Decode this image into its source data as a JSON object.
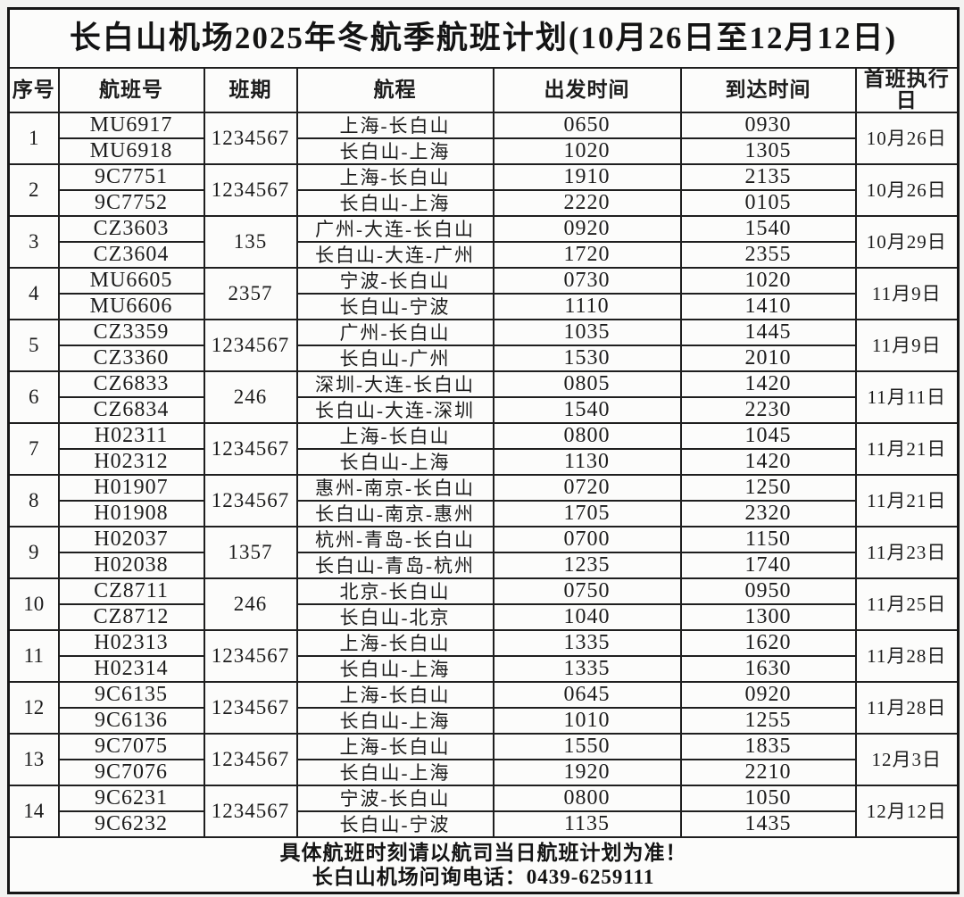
{
  "title": "长白山机场2025年冬航季航班计划(10月26日至12月12日)",
  "table": {
    "headers": [
      "序号",
      "航班号",
      "班期",
      "航程",
      "出发时间",
      "到达时间",
      "首班执行日"
    ],
    "rows": [
      {
        "no": "1",
        "days": "1234567",
        "first_date": "10月26日",
        "flights": [
          {
            "flight_no": "MU6917",
            "route": "上海-长白山",
            "dep": "0650",
            "arr": "0930"
          },
          {
            "flight_no": "MU6918",
            "route": "长白山-上海",
            "dep": "1020",
            "arr": "1305"
          }
        ]
      },
      {
        "no": "2",
        "days": "1234567",
        "first_date": "10月26日",
        "flights": [
          {
            "flight_no": "9C7751",
            "route": "上海-长白山",
            "dep": "1910",
            "arr": "2135"
          },
          {
            "flight_no": "9C7752",
            "route": "长白山-上海",
            "dep": "2220",
            "arr": "0105"
          }
        ]
      },
      {
        "no": "3",
        "days": "135",
        "first_date": "10月29日",
        "flights": [
          {
            "flight_no": "CZ3603",
            "route": "广州-大连-长白山",
            "dep": "0920",
            "arr": "1540"
          },
          {
            "flight_no": "CZ3604",
            "route": "长白山-大连-广州",
            "dep": "1720",
            "arr": "2355"
          }
        ]
      },
      {
        "no": "4",
        "days": "2357",
        "first_date": "11月9日",
        "flights": [
          {
            "flight_no": "MU6605",
            "route": "宁波-长白山",
            "dep": "0730",
            "arr": "1020"
          },
          {
            "flight_no": "MU6606",
            "route": "长白山-宁波",
            "dep": "1110",
            "arr": "1410"
          }
        ]
      },
      {
        "no": "5",
        "days": "1234567",
        "first_date": "11月9日",
        "flights": [
          {
            "flight_no": "CZ3359",
            "route": "广州-长白山",
            "dep": "1035",
            "arr": "1445"
          },
          {
            "flight_no": "CZ3360",
            "route": "长白山-广州",
            "dep": "1530",
            "arr": "2010"
          }
        ]
      },
      {
        "no": "6",
        "days": "246",
        "first_date": "11月11日",
        "flights": [
          {
            "flight_no": "CZ6833",
            "route": "深圳-大连-长白山",
            "dep": "0805",
            "arr": "1420"
          },
          {
            "flight_no": "CZ6834",
            "route": "长白山-大连-深圳",
            "dep": "1540",
            "arr": "2230"
          }
        ]
      },
      {
        "no": "7",
        "days": "1234567",
        "first_date": "11月21日",
        "flights": [
          {
            "flight_no": "H02311",
            "route": "上海-长白山",
            "dep": "0800",
            "arr": "1045"
          },
          {
            "flight_no": "H02312",
            "route": "长白山-上海",
            "dep": "1130",
            "arr": "1420"
          }
        ]
      },
      {
        "no": "8",
        "days": "1234567",
        "first_date": "11月21日",
        "flights": [
          {
            "flight_no": "H01907",
            "route": "惠州-南京-长白山",
            "dep": "0720",
            "arr": "1250"
          },
          {
            "flight_no": "H01908",
            "route": "长白山-南京-惠州",
            "dep": "1705",
            "arr": "2320"
          }
        ]
      },
      {
        "no": "9",
        "days": "1357",
        "first_date": "11月23日",
        "flights": [
          {
            "flight_no": "H02037",
            "route": "杭州-青岛-长白山",
            "dep": "0700",
            "arr": "1150"
          },
          {
            "flight_no": "H02038",
            "route": "长白山-青岛-杭州",
            "dep": "1235",
            "arr": "1740"
          }
        ]
      },
      {
        "no": "10",
        "days": "246",
        "first_date": "11月25日",
        "flights": [
          {
            "flight_no": "CZ8711",
            "route": "北京-长白山",
            "dep": "0750",
            "arr": "0950"
          },
          {
            "flight_no": "CZ8712",
            "route": "长白山-北京",
            "dep": "1040",
            "arr": "1300"
          }
        ]
      },
      {
        "no": "11",
        "days": "1234567",
        "first_date": "11月28日",
        "flights": [
          {
            "flight_no": "H02313",
            "route": "上海-长白山",
            "dep": "1335",
            "arr": "1620"
          },
          {
            "flight_no": "H02314",
            "route": "长白山-上海",
            "dep": "1335",
            "arr": "1630"
          }
        ]
      },
      {
        "no": "12",
        "days": "1234567",
        "first_date": "11月28日",
        "flights": [
          {
            "flight_no": "9C6135",
            "route": "上海-长白山",
            "dep": "0645",
            "arr": "0920"
          },
          {
            "flight_no": "9C6136",
            "route": "长白山-上海",
            "dep": "1010",
            "arr": "1255"
          }
        ]
      },
      {
        "no": "13",
        "days": "1234567",
        "first_date": "12月3日",
        "flights": [
          {
            "flight_no": "9C7075",
            "route": "上海-长白山",
            "dep": "1550",
            "arr": "1835"
          },
          {
            "flight_no": "9C7076",
            "route": "长白山-上海",
            "dep": "1920",
            "arr": "2210"
          }
        ]
      },
      {
        "no": "14",
        "days": "1234567",
        "first_date": "12月12日",
        "flights": [
          {
            "flight_no": "9C6231",
            "route": "宁波-长白山",
            "dep": "0800",
            "arr": "1050"
          },
          {
            "flight_no": "9C6232",
            "route": "长白山-宁波",
            "dep": "1135",
            "arr": "1435"
          }
        ]
      }
    ]
  },
  "footer": {
    "note": "具体航班时刻请以航司当日航班计划为准！",
    "phone_line": "长白山机场问询电话：0439-6259111"
  },
  "colors": {
    "border": "#1f1f1f",
    "text": "#1c1c1c",
    "page_background": "#f3f3f1",
    "table_background": "#fcfcfb"
  }
}
